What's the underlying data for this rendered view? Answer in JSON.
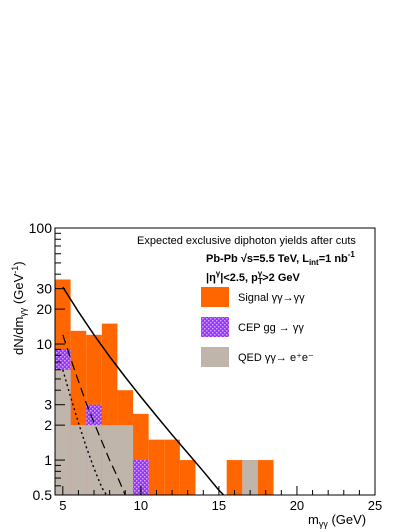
{
  "chart_data": {
    "type": "histogram",
    "title": "Expected exclusive diphoton yields after cuts",
    "annotations": [
      "Pb-Pb  √s=5.5 TeV, L",
      "int",
      "=1 nb",
      "-1",
      "|η",
      "γ",
      "|<2.5, p",
      "T",
      "γ",
      ">2 GeV"
    ],
    "xlabel": "m",
    "xlabel_sub": "γγ",
    "xlabel_unit": " (GeV)",
    "ylabel": "dN/dm",
    "ylabel_sub": "γγ",
    "ylabel_unit": " (GeV",
    "ylabel_sup": "-1",
    "ylabel_close": ")",
    "xlim": [
      4.5,
      25
    ],
    "ylim": [
      0.5,
      100
    ],
    "yscale": "log",
    "x_ticks": [
      "5",
      "10",
      "15",
      "20",
      "25"
    ],
    "y_ticks": [
      {
        "value": 0.5,
        "label": "0.5"
      },
      {
        "value": 1,
        "label": "1"
      },
      {
        "value": 2,
        "label": "2"
      },
      {
        "value": 3,
        "label": "3"
      },
      {
        "value": 10,
        "label": "10"
      },
      {
        "value": 20,
        "label": "20"
      },
      {
        "value": 30,
        "label": "30"
      },
      {
        "value": 100,
        "label": "100"
      }
    ],
    "bin_width": 1,
    "series": [
      {
        "name": "Signal γγ→γγ",
        "color": "#ff6600",
        "bins": [
          {
            "x": 4.5,
            "value": 36
          },
          {
            "x": 5.5,
            "value": 13
          },
          {
            "x": 6.5,
            "value": 12
          },
          {
            "x": 7.5,
            "value": 15
          },
          {
            "x": 8.5,
            "value": 4
          },
          {
            "x": 9.5,
            "value": 2.5
          },
          {
            "x": 10.5,
            "value": 1.5
          },
          {
            "x": 11.5,
            "value": 1.5
          },
          {
            "x": 12.5,
            "value": 1
          },
          {
            "x": 15.5,
            "value": 1
          },
          {
            "x": 16.5,
            "value": 1
          },
          {
            "x": 17.5,
            "value": 1
          }
        ]
      },
      {
        "name": "CEP gg → γγ",
        "color": "#9933ff",
        "bins": [
          {
            "x": 4.5,
            "value": 9
          },
          {
            "x": 6.5,
            "value": 3
          },
          {
            "x": 9.5,
            "value": 1
          }
        ]
      },
      {
        "name": "QED γγ→ e⁺e⁻",
        "color": "#bfb5ab",
        "bins": [
          {
            "x": 4.5,
            "value": 6
          },
          {
            "x": 5.5,
            "value": 2
          },
          {
            "x": 6.5,
            "value": 2
          },
          {
            "x": 7.5,
            "value": 2
          },
          {
            "x": 8.5,
            "value": 2
          },
          {
            "x": 16.5,
            "value": 1
          }
        ]
      }
    ],
    "curves": [
      {
        "style": "solid",
        "points": [
          [
            5,
            31
          ],
          [
            6,
            19
          ],
          [
            7,
            12
          ],
          [
            8,
            7.8
          ],
          [
            9,
            5.2
          ],
          [
            10,
            3.5
          ],
          [
            11,
            2.4
          ],
          [
            12,
            1.65
          ],
          [
            13,
            1.15
          ],
          [
            14,
            0.8
          ],
          [
            15,
            0.55
          ],
          [
            15.3,
            0.5
          ]
        ]
      },
      {
        "style": "dashed",
        "points": [
          [
            5,
            12
          ],
          [
            5.5,
            7.5
          ],
          [
            6,
            4.8
          ],
          [
            6.5,
            3.1
          ],
          [
            7,
            2.1
          ],
          [
            7.5,
            1.45
          ],
          [
            8,
            1.0
          ],
          [
            8.5,
            0.72
          ],
          [
            9,
            0.5
          ]
        ]
      },
      {
        "style": "dotted",
        "points": [
          [
            5,
            6
          ],
          [
            5.5,
            3.5
          ],
          [
            6,
            2.1
          ],
          [
            6.5,
            1.3
          ],
          [
            7,
            0.85
          ],
          [
            7.5,
            0.58
          ],
          [
            7.8,
            0.5
          ]
        ]
      }
    ]
  }
}
